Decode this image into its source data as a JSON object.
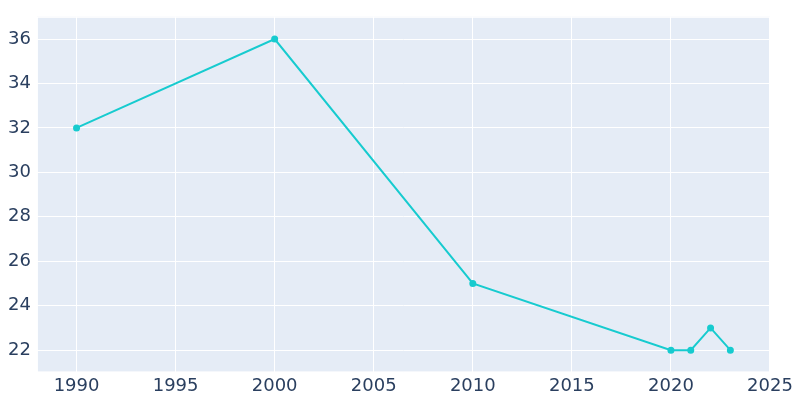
{
  "chart_data": {
    "type": "line",
    "x": [
      1990,
      2000,
      2010,
      2020,
      2021,
      2022,
      2023
    ],
    "values": [
      32,
      36,
      25,
      22,
      22,
      23,
      22
    ],
    "color": "#17cbcf",
    "marker": "circle",
    "xlim": [
      1988,
      2025
    ],
    "xticks": [
      1990,
      1995,
      2000,
      2005,
      2010,
      2015,
      2020,
      2025
    ],
    "ylim": [
      21,
      37
    ],
    "yticks": [
      22,
      24,
      26,
      28,
      30,
      32,
      34,
      36
    ],
    "grid": true
  }
}
